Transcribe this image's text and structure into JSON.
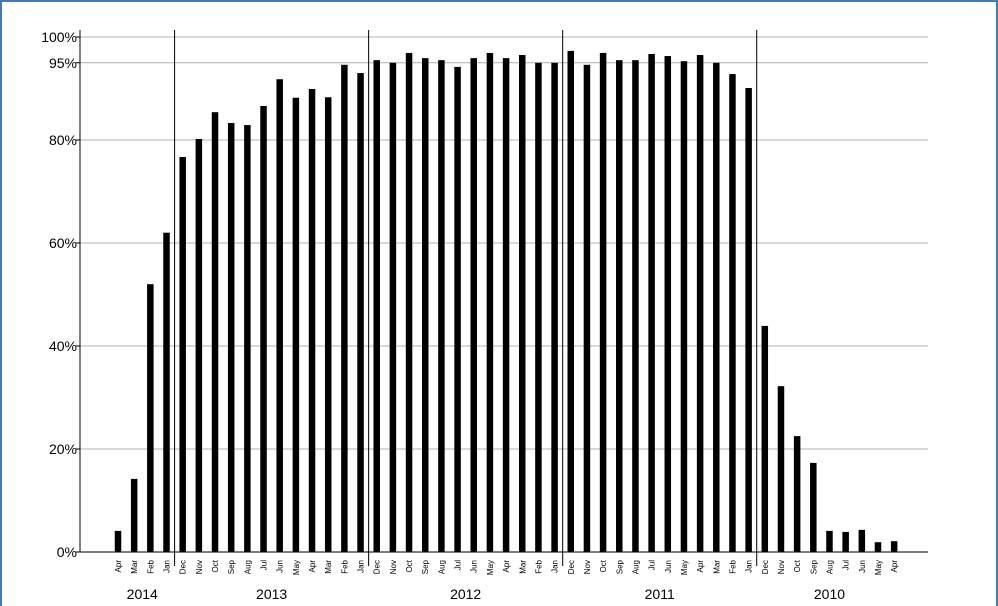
{
  "chart_data": {
    "type": "bar",
    "groups": [
      {
        "label": "2014",
        "categories": [
          "Apr",
          "Mar",
          "Feb",
          "Jan"
        ]
      },
      {
        "label": "2013",
        "categories": [
          "Dec",
          "Nov",
          "Oct",
          "Sep",
          "Aug",
          "Jul",
          "Jun",
          "May",
          "Apr",
          "Mar",
          "Feb",
          "Jan"
        ]
      },
      {
        "label": "2012",
        "categories": [
          "Dec",
          "Nov",
          "Oct",
          "Sep",
          "Aug",
          "Jul",
          "Jun",
          "May",
          "Apr",
          "Mar",
          "Feb",
          "Jan"
        ]
      },
      {
        "label": "2011",
        "categories": [
          "Dec",
          "Nov",
          "Oct",
          "Sep",
          "Aug",
          "Jul",
          "Jun",
          "May",
          "Apr",
          "Mar",
          "Feb",
          "Jan"
        ]
      },
      {
        "label": "2010",
        "categories": [
          "Dec",
          "Nov",
          "Oct",
          "Sep",
          "Aug",
          "Jul",
          "Jun",
          "May",
          "Apr"
        ]
      }
    ],
    "values": [
      4.1,
      14.2,
      52,
      62,
      76.7,
      80.2,
      85.4,
      83.3,
      82.9,
      86.6,
      91.8,
      88.2,
      89.9,
      88.3,
      94.6,
      93,
      95.5,
      95,
      96.9,
      95.9,
      95.5,
      94.2,
      95.9,
      96.9,
      95.9,
      96.5,
      95,
      95,
      97.3,
      94.6,
      96.9,
      95.5,
      95.5,
      96.7,
      96.3,
      95.3,
      96.5,
      95,
      92.8,
      90.1,
      43.9,
      32.2,
      22.5,
      17.3,
      4.1,
      3.9,
      4.3,
      1.9,
      2.1
    ],
    "color": "#000000",
    "ylim": [
      0,
      100
    ],
    "yticks": [
      {
        "value": 0,
        "label": "0%"
      },
      {
        "value": 20,
        "label": "20%"
      },
      {
        "value": 40,
        "label": "40%"
      },
      {
        "value": 60,
        "label": "60%"
      },
      {
        "value": 80,
        "label": "80%"
      },
      {
        "value": 95,
        "label": "95%"
      },
      {
        "value": 100,
        "label": "100%"
      }
    ],
    "grid": true
  }
}
